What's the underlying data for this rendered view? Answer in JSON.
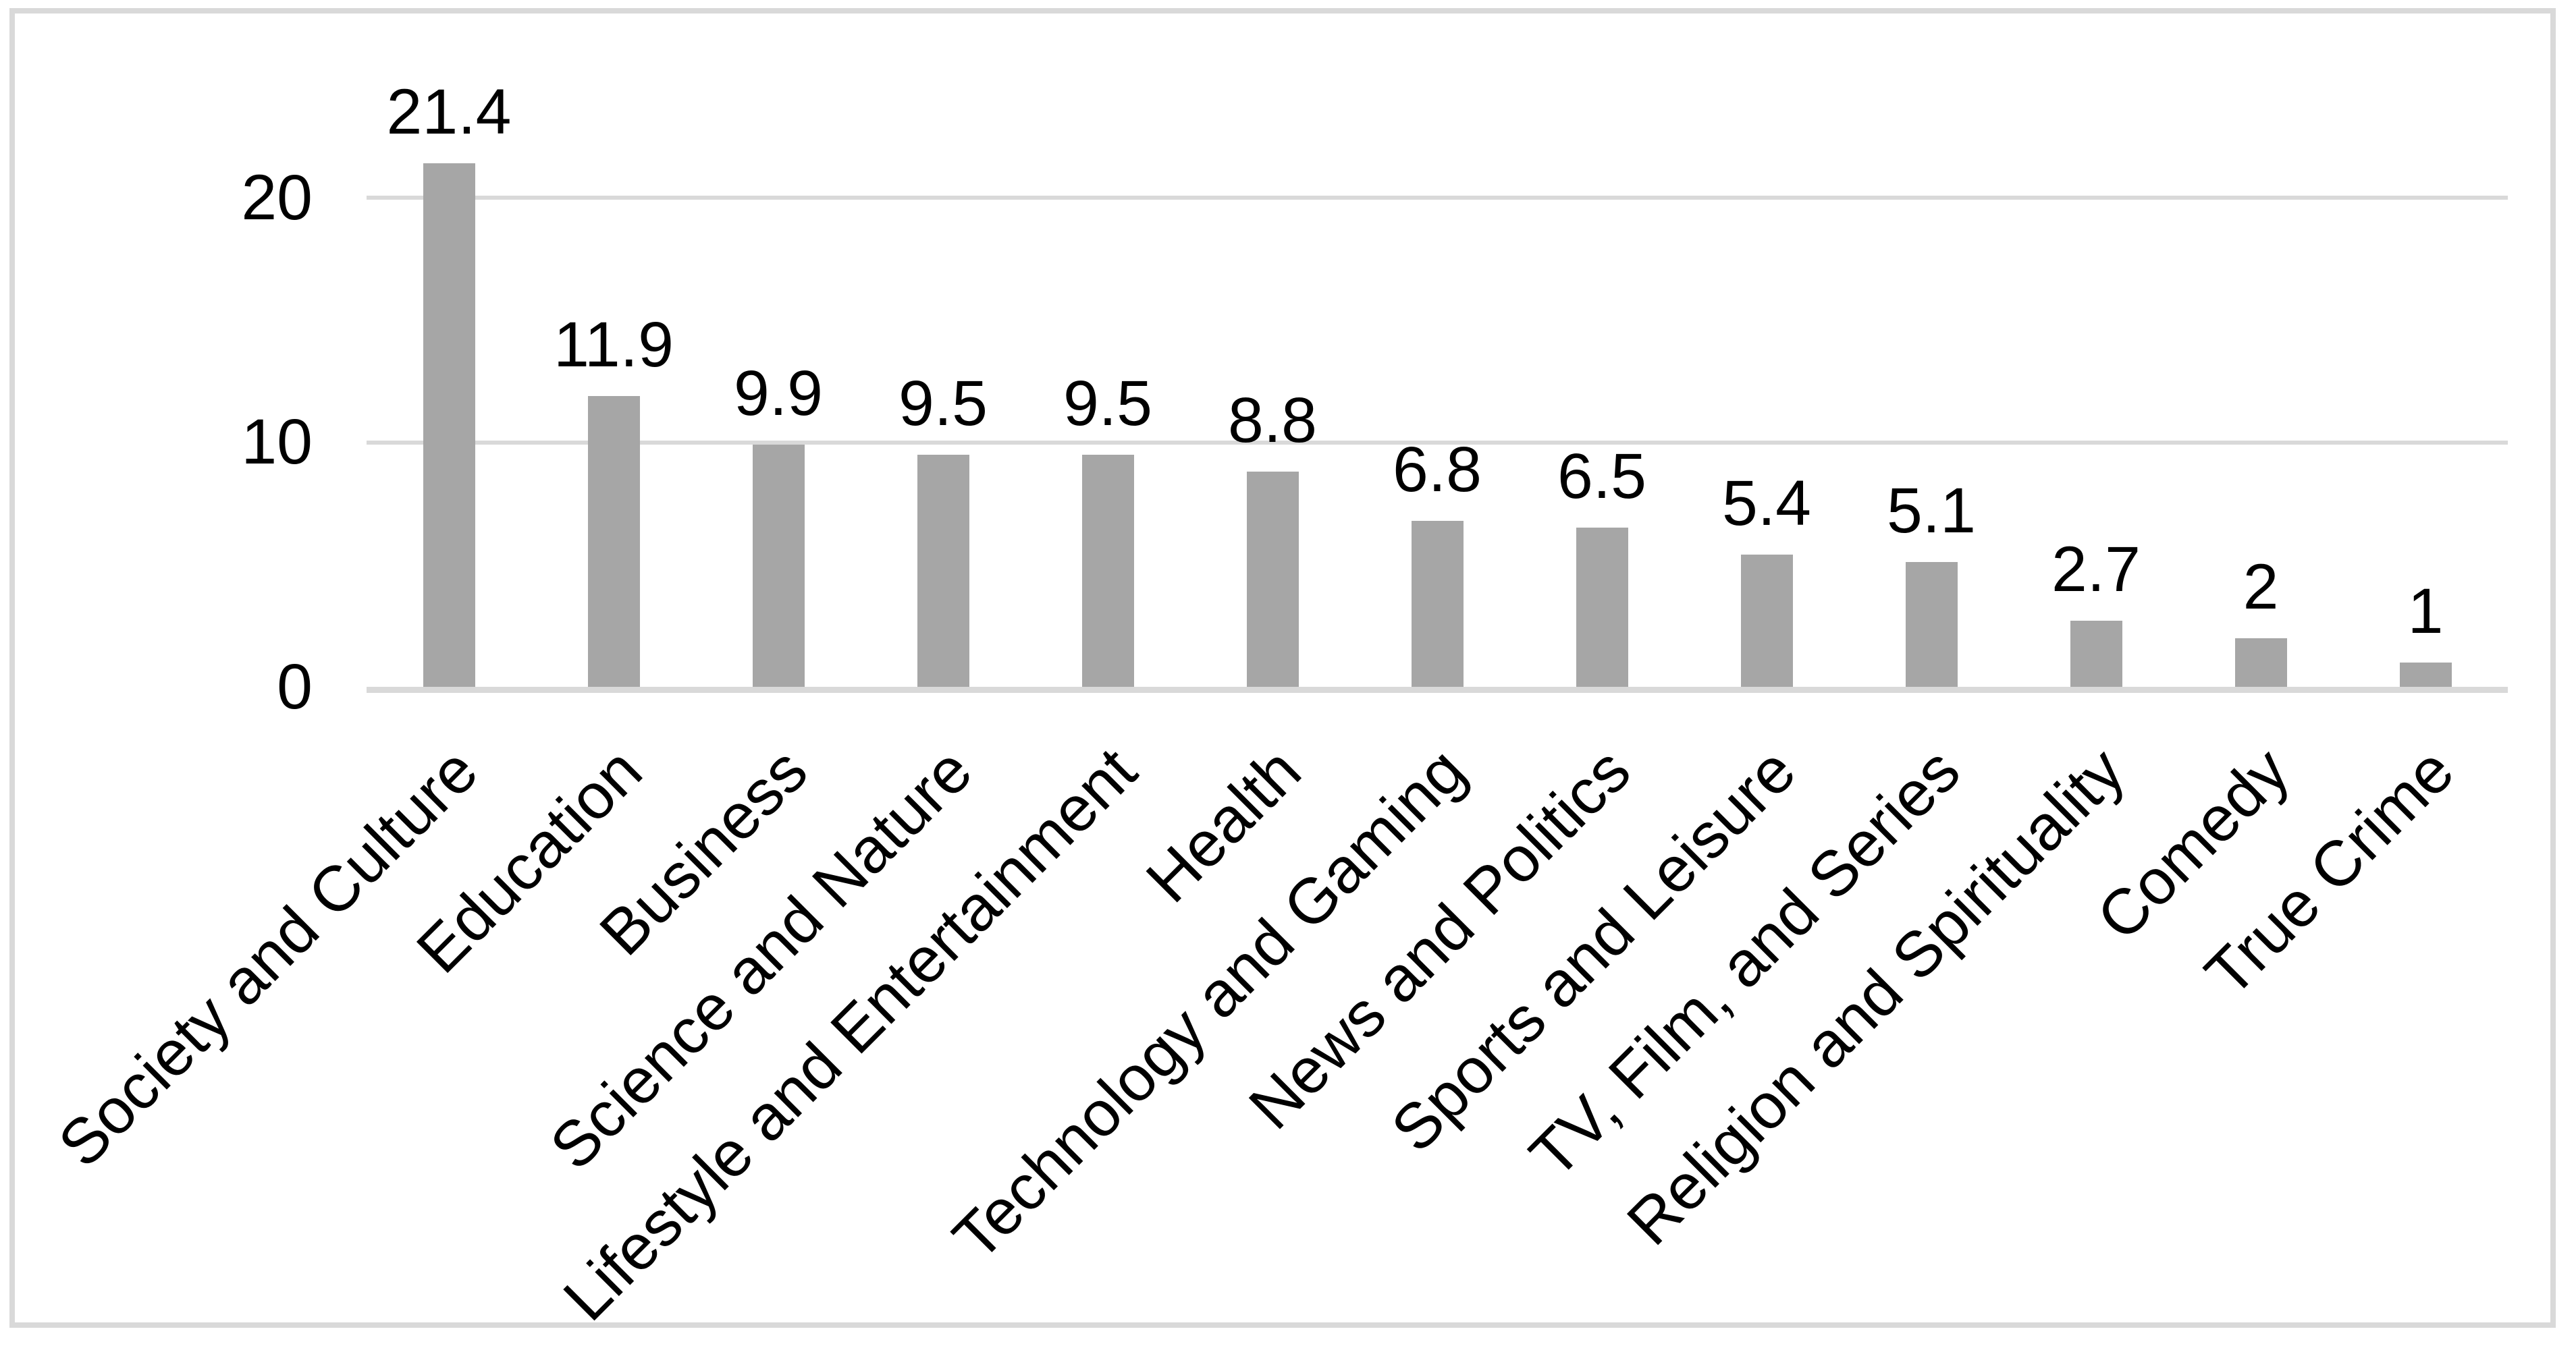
{
  "chart_data": {
    "type": "bar",
    "title": "",
    "xlabel": "",
    "ylabel": "",
    "categories": [
      "Society and Culture",
      "Education",
      "Business",
      "Science and Nature",
      "Lifestyle and Entertainment",
      "Health",
      "Technology and Gaming",
      "News and Politics",
      "Sports and Leisure",
      "TV, Film, and Series",
      "Religion and Spirituality",
      "Comedy",
      "True Crime"
    ],
    "values": [
      21.4,
      11.9,
      9.9,
      9.5,
      9.5,
      8.8,
      6.8,
      6.5,
      5.4,
      5.1,
      2.7,
      2,
      1
    ],
    "data_labels": [
      "21.4",
      "11.9",
      "9.9",
      "9.5",
      "9.5",
      "8.8",
      "6.8",
      "6.5",
      "5.4",
      "5.1",
      "2.7",
      "2",
      "1"
    ],
    "yticks": [
      0,
      10,
      20
    ],
    "ytick_labels": [
      "0",
      "10",
      "20"
    ],
    "ylim": [
      0,
      22
    ],
    "grid": true,
    "legend": null,
    "category_label_rotation_deg": 45,
    "colors": {
      "bar_fill": "#a6a6a6",
      "gridline": "#d9d9d9",
      "axis_line": "#d9d9d9",
      "text": "#000000",
      "frame_border": "#d9d9d9",
      "background": "#ffffff"
    }
  }
}
